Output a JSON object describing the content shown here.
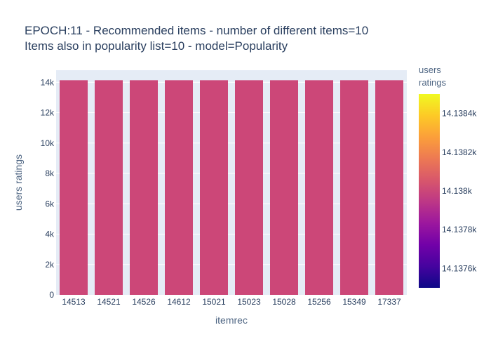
{
  "chart_data": {
    "type": "bar",
    "title_lines": [
      "EPOCH:11 - Recommended items - number of different items=10",
      "Items also in popularity list=10 - model=Popularity"
    ],
    "xlabel": "itemrec",
    "ylabel": "users ratings",
    "categories": [
      "14513",
      "14521",
      "14526",
      "14612",
      "15021",
      "15023",
      "15028",
      "15256",
      "15349",
      "17337"
    ],
    "values": [
      14138,
      14138,
      14138,
      14138,
      14138,
      14138,
      14138,
      14138,
      14138,
      14138
    ],
    "ylim": [
      0,
      14800
    ],
    "y_ticks": [
      {
        "value": 0,
        "label": "0"
      },
      {
        "value": 2000,
        "label": "2k"
      },
      {
        "value": 4000,
        "label": "4k"
      },
      {
        "value": 6000,
        "label": "6k"
      },
      {
        "value": 8000,
        "label": "8k"
      },
      {
        "value": 10000,
        "label": "10k"
      },
      {
        "value": 12000,
        "label": "12k"
      },
      {
        "value": 14000,
        "label": "14k"
      }
    ],
    "grid": true,
    "bar_color": "#cc4778",
    "plot_background": "#e5ecf6",
    "colorbar": {
      "title_lines": [
        "users",
        "ratings"
      ],
      "range": [
        14137.5,
        14138.5
      ],
      "ticks": [
        {
          "value": 14137.6,
          "label": "14.1376k"
        },
        {
          "value": 14137.8,
          "label": "14.1378k"
        },
        {
          "value": 14138.0,
          "label": "14.138k"
        },
        {
          "value": 14138.2,
          "label": "14.1382k"
        },
        {
          "value": 14138.4,
          "label": "14.1384k"
        }
      ],
      "colorscale": [
        "#0d0887",
        "#46039f",
        "#7201a8",
        "#9c179e",
        "#bd3786",
        "#d8576b",
        "#ed7953",
        "#fb9f3a",
        "#fdca26",
        "#f0f921"
      ]
    }
  }
}
